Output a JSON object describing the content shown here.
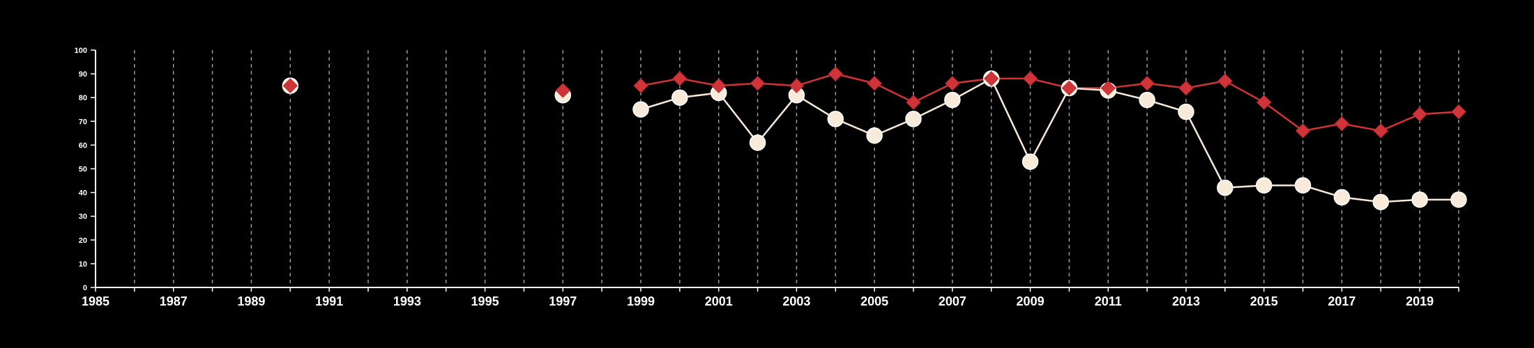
{
  "chart_data": {
    "type": "line",
    "title": "",
    "xlabel": "",
    "ylabel": "",
    "xlim": [
      1985,
      2020
    ],
    "ylim": [
      0,
      100
    ],
    "x_tick_labels": [
      "1985",
      "1987",
      "1989",
      "1991",
      "1993",
      "1995",
      "1997",
      "1999",
      "2001",
      "2003",
      "2005",
      "2007",
      "2009",
      "2011",
      "2013",
      "2015",
      "2017",
      "2019"
    ],
    "x_ticks": [
      1985,
      1987,
      1989,
      1991,
      1993,
      1995,
      1997,
      1999,
      2001,
      2003,
      2005,
      2007,
      2009,
      2011,
      2013,
      2015,
      2017,
      2019
    ],
    "y_tick_labels": [
      "0",
      "10",
      "20",
      "30",
      "40",
      "50",
      "60",
      "70",
      "80",
      "90",
      "100"
    ],
    "y_ticks": [
      0,
      10,
      20,
      30,
      40,
      50,
      60,
      70,
      80,
      90,
      100
    ],
    "grid": "vertical dashed, every year",
    "legend": "none",
    "series": [
      {
        "marker": "diamond",
        "color": "#d03438",
        "points": [
          {
            "x": 1990,
            "y": 85
          },
          {
            "x": 1997,
            "y": 83
          },
          {
            "x": 1999,
            "y": 85
          },
          {
            "x": 2000,
            "y": 88
          },
          {
            "x": 2001,
            "y": 85
          },
          {
            "x": 2002,
            "y": 86
          },
          {
            "x": 2003,
            "y": 85
          },
          {
            "x": 2004,
            "y": 90
          },
          {
            "x": 2005,
            "y": 86
          },
          {
            "x": 2006,
            "y": 78
          },
          {
            "x": 2007,
            "y": 86
          },
          {
            "x": 2008,
            "y": 88
          },
          {
            "x": 2009,
            "y": 88
          },
          {
            "x": 2010,
            "y": 84
          },
          {
            "x": 2011,
            "y": 84
          },
          {
            "x": 2012,
            "y": 86
          },
          {
            "x": 2013,
            "y": 84
          },
          {
            "x": 2014,
            "y": 87
          },
          {
            "x": 2015,
            "y": 78
          },
          {
            "x": 2016,
            "y": 66
          },
          {
            "x": 2017,
            "y": 69
          },
          {
            "x": 2018,
            "y": 66
          },
          {
            "x": 2019,
            "y": 73
          },
          {
            "x": 2020,
            "y": 74
          }
        ]
      },
      {
        "marker": "circle",
        "color": "#f8ead8",
        "points": [
          {
            "x": 1990,
            "y": 85
          },
          {
            "x": 1997,
            "y": 81
          },
          {
            "x": 1999,
            "y": 75
          },
          {
            "x": 2000,
            "y": 80
          },
          {
            "x": 2001,
            "y": 82
          },
          {
            "x": 2002,
            "y": 61
          },
          {
            "x": 2003,
            "y": 81
          },
          {
            "x": 2004,
            "y": 71
          },
          {
            "x": 2005,
            "y": 64
          },
          {
            "x": 2006,
            "y": 71
          },
          {
            "x": 2007,
            "y": 79
          },
          {
            "x": 2008,
            "y": 88
          },
          {
            "x": 2009,
            "y": 53
          },
          {
            "x": 2010,
            "y": 84
          },
          {
            "x": 2011,
            "y": 83
          },
          {
            "x": 2012,
            "y": 79
          },
          {
            "x": 2013,
            "y": 74
          },
          {
            "x": 2014,
            "y": 42
          },
          {
            "x": 2015,
            "y": 43
          },
          {
            "x": 2016,
            "y": 43
          },
          {
            "x": 2017,
            "y": 38
          },
          {
            "x": 2018,
            "y": 36
          },
          {
            "x": 2019,
            "y": 37
          },
          {
            "x": 2020,
            "y": 37
          }
        ]
      }
    ]
  }
}
